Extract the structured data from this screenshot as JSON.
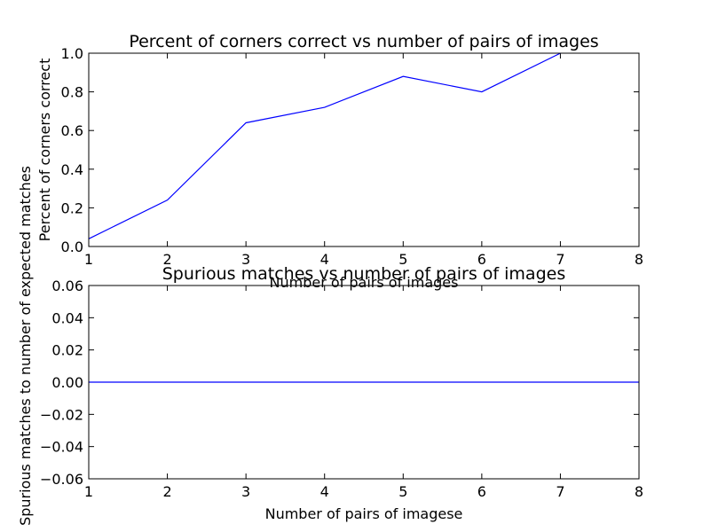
{
  "chart_data": [
    {
      "type": "line",
      "title": "Percent of corners correct vs number of pairs of images",
      "xlabel": "Number of pairs of images",
      "ylabel": "Percent of corners correct",
      "xlim": [
        1,
        8
      ],
      "ylim": [
        0.0,
        1.0
      ],
      "xticks": [
        "1",
        "2",
        "3",
        "4",
        "5",
        "6",
        "7",
        "8"
      ],
      "yticks": [
        "0.0",
        "0.2",
        "0.4",
        "0.6",
        "0.8",
        "1.0"
      ],
      "grid": false,
      "series": [
        {
          "x": [
            1,
            2,
            3,
            4,
            5,
            6,
            7
          ],
          "y": [
            0.04,
            0.24,
            0.64,
            0.72,
            0.88,
            0.8,
            1.0
          ],
          "color": "#0000ff"
        }
      ]
    },
    {
      "type": "line",
      "title": "Spurious matches vs number of pairs of images",
      "xlabel": "Number of pairs of imagese",
      "ylabel": "Spurious matches to number of expected matches",
      "xlim": [
        1,
        8
      ],
      "ylim": [
        -0.06,
        0.06
      ],
      "xticks": [
        "1",
        "2",
        "3",
        "4",
        "5",
        "6",
        "7",
        "8"
      ],
      "yticks": [
        "−0.06",
        "−0.04",
        "−0.02",
        "0.00",
        "0.02",
        "0.04",
        "0.06"
      ],
      "grid": false,
      "series": [
        {
          "x": [
            1,
            2,
            3,
            4,
            5,
            6,
            7,
            8
          ],
          "y": [
            0,
            0,
            0,
            0,
            0,
            0,
            0,
            0
          ],
          "color": "#0000ff"
        }
      ]
    }
  ]
}
